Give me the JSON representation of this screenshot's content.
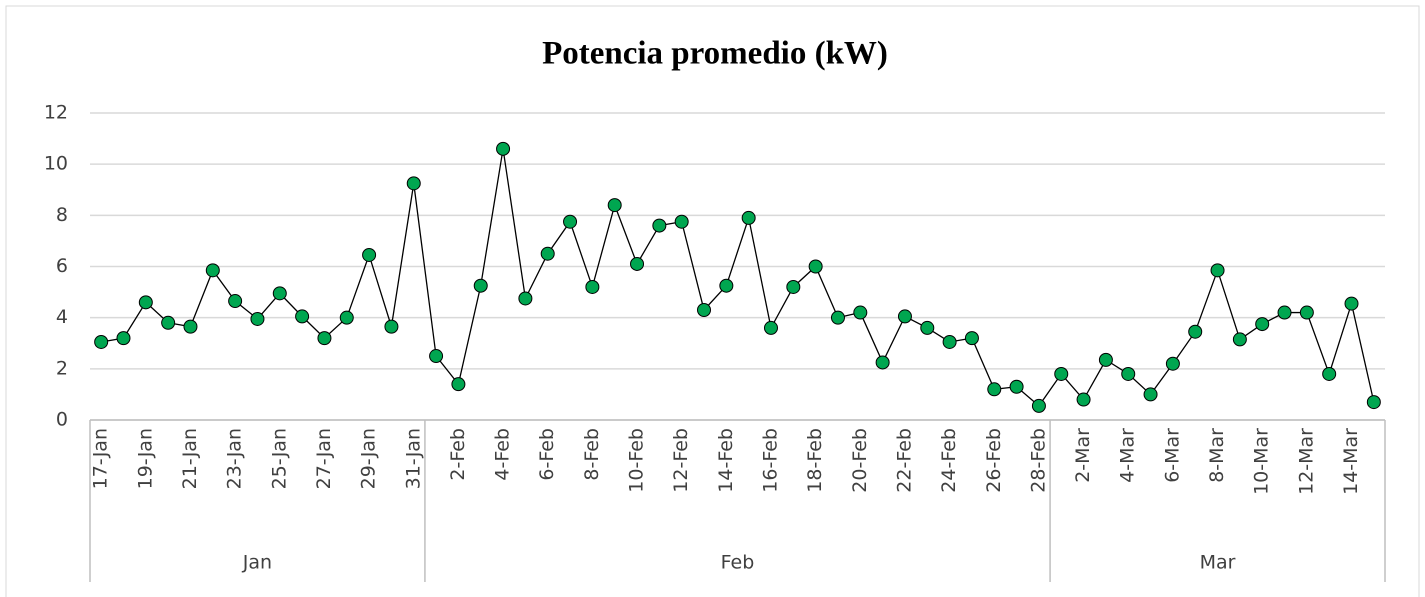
{
  "chart_data": {
    "type": "line",
    "title": "Potencia promedio (kW)",
    "categories": [
      "17-Jan",
      null,
      "19-Jan",
      null,
      "21-Jan",
      null,
      "23-Jan",
      null,
      "25-Jan",
      null,
      "27-Jan",
      null,
      "29-Jan",
      null,
      "31-Jan",
      null,
      "2-Feb",
      null,
      "4-Feb",
      null,
      "6-Feb",
      null,
      "8-Feb",
      null,
      "10-Feb",
      null,
      "12-Feb",
      null,
      "14-Feb",
      null,
      "16-Feb",
      null,
      "18-Feb",
      null,
      "20-Feb",
      null,
      "22-Feb",
      null,
      "24-Feb",
      null,
      "26-Feb",
      null,
      "28-Feb",
      null,
      "2-Mar",
      null,
      "4-Mar",
      null,
      "6-Mar",
      null,
      "8-Mar",
      null,
      "10-Mar",
      null,
      "12-Mar",
      null,
      "14-Mar",
      null
    ],
    "groups": [
      "Jan",
      "Feb",
      "Mar"
    ],
    "values": [
      3.05,
      3.2,
      4.6,
      3.8,
      3.65,
      5.85,
      4.65,
      3.95,
      4.95,
      4.05,
      3.2,
      4.0,
      6.45,
      3.65,
      9.25,
      2.5,
      1.4,
      5.25,
      10.6,
      4.75,
      6.5,
      7.75,
      5.2,
      8.4,
      6.1,
      7.6,
      7.75,
      4.3,
      5.25,
      7.9,
      3.6,
      5.2,
      6.0,
      4.0,
      4.2,
      2.25,
      4.05,
      3.6,
      3.05,
      3.2,
      1.2,
      1.3,
      0.55,
      1.8,
      0.8,
      2.35,
      1.8,
      1.0,
      2.2,
      3.45,
      5.85,
      3.15,
      3.75,
      4.2,
      4.2,
      1.8,
      4.55,
      0.7
    ],
    "color": "#00a650",
    "line_color": "#000000",
    "ylim": [
      0,
      12
    ],
    "yticks": [
      0,
      2,
      4,
      6,
      8,
      10,
      12
    ],
    "grid": true
  }
}
